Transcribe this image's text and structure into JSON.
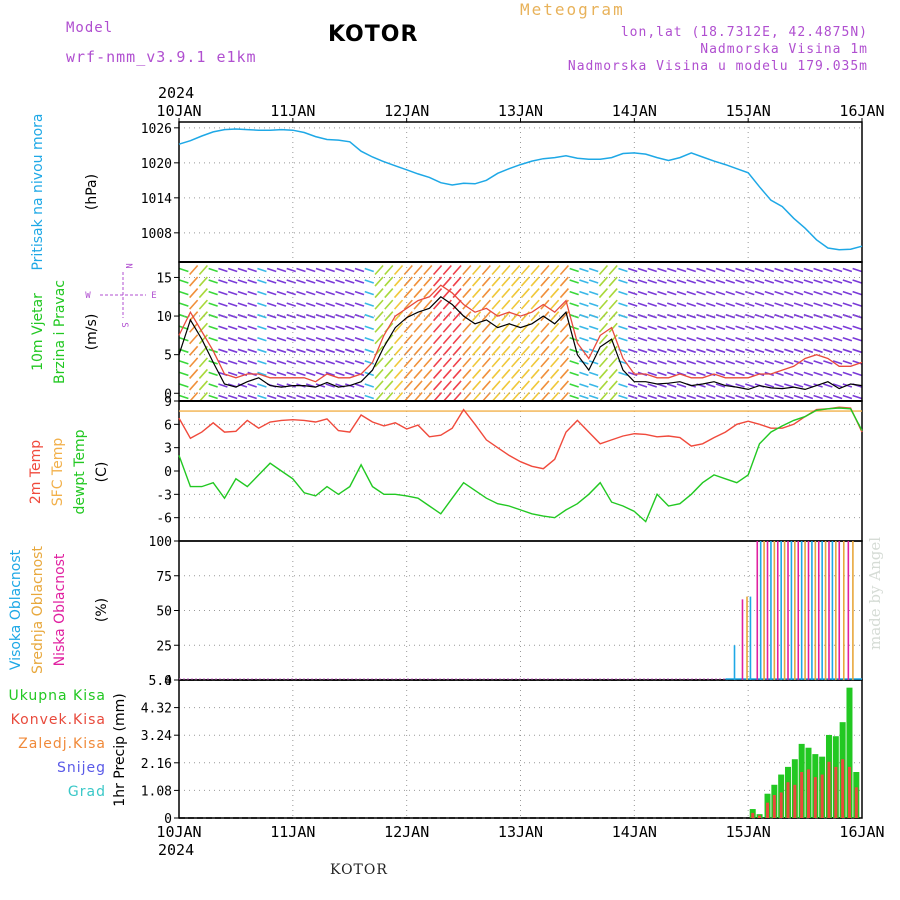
{
  "header": {
    "model_label": "Model",
    "model_version": "wrf-nmm_v3.9.1 e1km",
    "station": "KOTOR",
    "product": "Meteogram",
    "lonlat": "lon,lat (18.7312E, 42.4875N)",
    "altitude": "Nadmorska Visina 1m",
    "model_altitude": "Nadmorska Visina u modelu 179.035m"
  },
  "footer": {
    "station": "KOTOR"
  },
  "credit": "made by Angel",
  "time_axis": {
    "year": "2024",
    "ticks": [
      "10JAN",
      "11JAN",
      "12JAN",
      "13JAN",
      "14JAN",
      "15JAN",
      "16JAN"
    ]
  },
  "colors": {
    "pressure": "#1ea8e6",
    "wind_speed": "#000000",
    "wind_gust": "#e84a3c",
    "temp2m": "#f04a3c",
    "sfc_temp": "#f2b04a",
    "dewpoint": "#22c822",
    "cloud_high": "#1ea8e6",
    "cloud_mid": "#e8a83c",
    "cloud_low": "#e020a0",
    "precip_total": "#22c822",
    "precip_conv": "#e84a3c",
    "label_purple": "#b04fd0"
  },
  "chart_data": [
    {
      "type": "line",
      "panel": "pressure",
      "ylabel": [
        "Pritisak na nivou mora",
        "(hPa)"
      ],
      "ytick_labels": [
        "1026",
        "1020",
        "1014",
        "1008"
      ],
      "ylim": [
        1003,
        1027
      ],
      "x_days": [
        0,
        0.1,
        0.2,
        0.3,
        0.4,
        0.5,
        0.6,
        0.7,
        0.8,
        0.9,
        1.0,
        1.1,
        1.2,
        1.3,
        1.4,
        1.5,
        1.6,
        1.7,
        1.8,
        1.9,
        2.0,
        2.1,
        2.2,
        2.3,
        2.4,
        2.5,
        2.6,
        2.7,
        2.8,
        2.9,
        3.0,
        3.1,
        3.2,
        3.3,
        3.4,
        3.5,
        3.6,
        3.7,
        3.8,
        3.9,
        4.0,
        4.1,
        4.2,
        4.3,
        4.4,
        4.5,
        4.6,
        4.7,
        4.8,
        4.9,
        5.0,
        5.1,
        5.2,
        5.3,
        5.4,
        5.5,
        5.6,
        5.7,
        5.8,
        5.9,
        6.0
      ],
      "series": [
        {
          "values": [
            1023.2,
            1023.8,
            1024.6,
            1025.3,
            1025.7,
            1025.8,
            1025.7,
            1025.6,
            1025.6,
            1025.7,
            1025.6,
            1025.2,
            1024.5,
            1024.0,
            1023.9,
            1023.6,
            1022.0,
            1021.0,
            1020.2,
            1019.5,
            1018.8,
            1018.1,
            1017.5,
            1016.6,
            1016.2,
            1016.5,
            1016.4,
            1017.0,
            1018.2,
            1019.0,
            1019.7,
            1020.3,
            1020.7,
            1020.9,
            1021.2,
            1020.8,
            1020.6,
            1020.6,
            1020.9,
            1021.6,
            1021.7,
            1021.5,
            1020.9,
            1020.4,
            1020.9,
            1021.7,
            1021.0,
            1020.3,
            1019.7,
            1019.0,
            1018.3,
            1015.9,
            1013.6,
            1012.5,
            1010.5,
            1008.8,
            1006.8,
            1005.4,
            1005.1,
            1005.2,
            1005.7
          ]
        }
      ]
    },
    {
      "type": "line",
      "panel": "wind",
      "ylabel": [
        "10m Vjetar",
        "Brzina i Pravac",
        "(m/s)"
      ],
      "compass_labels": [
        "W",
        "E",
        "N",
        "S"
      ],
      "ytick_labels": [
        "15",
        "10",
        "5",
        "0"
      ],
      "ylim": [
        -1,
        17
      ],
      "x_days": [
        0,
        0.1,
        0.2,
        0.3,
        0.4,
        0.5,
        0.6,
        0.7,
        0.8,
        0.9,
        1.0,
        1.1,
        1.2,
        1.3,
        1.4,
        1.5,
        1.6,
        1.7,
        1.8,
        1.9,
        2.0,
        2.1,
        2.2,
        2.3,
        2.4,
        2.5,
        2.6,
        2.7,
        2.8,
        2.9,
        3.0,
        3.1,
        3.2,
        3.3,
        3.4,
        3.5,
        3.6,
        3.7,
        3.8,
        3.9,
        4.0,
        4.1,
        4.2,
        4.3,
        4.4,
        4.5,
        4.6,
        4.7,
        4.8,
        4.9,
        5.0,
        5.1,
        5.2,
        5.3,
        5.4,
        5.5,
        5.6,
        5.7,
        5.8,
        5.9,
        6.0
      ],
      "series": [
        {
          "name_ref": "speed",
          "values": [
            5.0,
            9.5,
            7.0,
            4.0,
            1.2,
            0.8,
            1.5,
            2.0,
            1.0,
            0.8,
            1.0,
            1.0,
            0.8,
            1.4,
            0.8,
            1.0,
            1.5,
            3.0,
            6.0,
            8.5,
            9.8,
            10.5,
            11.0,
            12.5,
            11.5,
            10.0,
            9.0,
            9.5,
            8.5,
            9.0,
            8.5,
            9.0,
            10.0,
            9.0,
            10.5,
            5.0,
            3.0,
            6.0,
            7.0,
            3.0,
            1.5,
            1.5,
            1.2,
            1.3,
            1.5,
            1.0,
            1.2,
            1.5,
            1.0,
            0.8,
            0.5,
            1.0,
            0.7,
            0.6,
            0.8,
            0.5,
            1.0,
            1.5,
            0.6,
            1.2,
            1.0
          ]
        },
        {
          "name_ref": "gust",
          "values": [
            7.5,
            10.5,
            8.0,
            5.5,
            2.5,
            2.0,
            2.5,
            2.5,
            2.0,
            2.0,
            2.0,
            2.0,
            1.5,
            2.5,
            2.0,
            2.0,
            2.5,
            4.0,
            7.5,
            10.0,
            11.0,
            12.0,
            12.5,
            14.0,
            13.0,
            11.5,
            10.5,
            11.0,
            10.0,
            10.5,
            10.0,
            10.5,
            11.5,
            10.5,
            12.0,
            6.5,
            4.5,
            7.5,
            8.5,
            4.5,
            2.5,
            2.5,
            2.0,
            2.0,
            2.5,
            2.0,
            2.0,
            2.5,
            2.0,
            2.0,
            2.0,
            2.5,
            2.5,
            3.0,
            3.5,
            4.5,
            5.0,
            4.5,
            3.5,
            3.5,
            4.0
          ]
        }
      ]
    },
    {
      "type": "line",
      "panel": "temperature",
      "ylabel": [
        "2m Temp",
        "SFC Temp",
        "dewpt Temp",
        "(C)"
      ],
      "ytick_labels": [
        "9",
        "6",
        "3",
        "0",
        "-3",
        "-6"
      ],
      "ylim": [
        -9,
        9
      ],
      "x_days": [
        0,
        0.1,
        0.2,
        0.3,
        0.4,
        0.5,
        0.6,
        0.7,
        0.8,
        0.9,
        1.0,
        1.1,
        1.2,
        1.3,
        1.4,
        1.5,
        1.6,
        1.7,
        1.8,
        1.9,
        2.0,
        2.1,
        2.2,
        2.3,
        2.4,
        2.5,
        2.6,
        2.7,
        2.8,
        2.9,
        3.0,
        3.1,
        3.2,
        3.3,
        3.4,
        3.5,
        3.6,
        3.7,
        3.8,
        3.9,
        4.0,
        4.1,
        4.2,
        4.3,
        4.4,
        4.5,
        4.6,
        4.7,
        4.8,
        4.9,
        5.0,
        5.1,
        5.2,
        5.3,
        5.4,
        5.5,
        5.6,
        5.7,
        5.8,
        5.9,
        6.0
      ],
      "series": [
        {
          "name_ref": "temp2m",
          "values": [
            6.8,
            4.2,
            5.0,
            6.2,
            5.0,
            5.1,
            6.5,
            5.5,
            6.3,
            6.5,
            6.6,
            6.5,
            6.3,
            6.7,
            5.2,
            5.0,
            7.2,
            6.3,
            5.8,
            6.2,
            5.4,
            5.9,
            4.4,
            4.6,
            5.5,
            7.9,
            6.0,
            4.0,
            3.0,
            2.0,
            1.2,
            0.6,
            0.3,
            1.5,
            5.0,
            6.5,
            5.0,
            3.5,
            4.0,
            4.5,
            4.8,
            4.7,
            4.4,
            4.5,
            4.3,
            3.2,
            3.5,
            4.3,
            5.0,
            6.0,
            6.4,
            6.0,
            5.5,
            5.5,
            6.0,
            7.0,
            7.9,
            8.0,
            8.2,
            8.1,
            5.0
          ]
        },
        {
          "name_ref": "sfc",
          "values": [
            7.7,
            7.7,
            7.7,
            7.7,
            7.7,
            7.7,
            7.7,
            7.7,
            7.7,
            7.7,
            7.7,
            7.7,
            7.7,
            7.7,
            7.7,
            7.7,
            7.7,
            7.7,
            7.7,
            7.7,
            7.7,
            7.7,
            7.7,
            7.7,
            7.7,
            7.7,
            7.7,
            7.7,
            7.7,
            7.7,
            7.7,
            7.7,
            7.7,
            7.7,
            7.7,
            7.7,
            7.7,
            7.7,
            7.7,
            7.7,
            7.7,
            7.7,
            7.7,
            7.7,
            7.7,
            7.7,
            7.7,
            7.7,
            7.7,
            7.7,
            7.7,
            7.7,
            7.7,
            7.7,
            7.7,
            7.7,
            7.7,
            7.7,
            7.7,
            7.7,
            7.7
          ]
        },
        {
          "name_ref": "dewpt",
          "values": [
            2.0,
            -2.0,
            -2.0,
            -1.5,
            -3.5,
            -1.0,
            -2.0,
            -0.5,
            1.0,
            0.0,
            -1.0,
            -2.8,
            -3.2,
            -2.0,
            -3.0,
            -2.0,
            0.8,
            -2.0,
            -3.0,
            -3.0,
            -3.2,
            -3.5,
            -4.5,
            -5.5,
            -3.5,
            -1.5,
            -2.5,
            -3.5,
            -4.2,
            -4.5,
            -5.0,
            -5.5,
            -5.8,
            -6.0,
            -5.0,
            -4.2,
            -3.0,
            -1.5,
            -4.0,
            -4.5,
            -5.2,
            -6.5,
            -3.0,
            -4.5,
            -4.2,
            -3.0,
            -1.5,
            -0.5,
            -1.0,
            -1.5,
            -0.5,
            3.5,
            5.0,
            5.8,
            6.5,
            7.0,
            7.8,
            8.0,
            8.1,
            8.0,
            5.2
          ]
        }
      ]
    },
    {
      "type": "bar",
      "panel": "clouds",
      "ylabel": [
        "Visoka Oblacnost",
        "Srednja Oblacnost",
        "Niska Oblacnost",
        "(%)"
      ],
      "ytick_labels": [
        "100",
        "75",
        "50",
        "25",
        "0"
      ],
      "ylim": [
        0,
        100
      ],
      "bars": [
        {
          "x": 4.88,
          "kind": "high",
          "value": 25
        },
        {
          "x": 4.95,
          "kind": "low",
          "value": 58
        },
        {
          "x": 4.99,
          "kind": "mid",
          "value": 60
        },
        {
          "x": 5.02,
          "kind": "high",
          "value": 60
        },
        {
          "x": 5.08,
          "kind": "low",
          "value": 100
        },
        {
          "x": 5.11,
          "kind": "high",
          "value": 100
        },
        {
          "x": 5.14,
          "kind": "mid",
          "value": 100
        },
        {
          "x": 5.17,
          "kind": "low",
          "value": 100
        },
        {
          "x": 5.2,
          "kind": "high",
          "value": 100
        },
        {
          "x": 5.23,
          "kind": "mid",
          "value": 100
        },
        {
          "x": 5.26,
          "kind": "low",
          "value": 100
        },
        {
          "x": 5.29,
          "kind": "high",
          "value": 100
        },
        {
          "x": 5.32,
          "kind": "mid",
          "value": 100
        },
        {
          "x": 5.35,
          "kind": "low",
          "value": 100
        },
        {
          "x": 5.38,
          "kind": "high",
          "value": 100
        },
        {
          "x": 5.41,
          "kind": "mid",
          "value": 100
        },
        {
          "x": 5.44,
          "kind": "low",
          "value": 100
        },
        {
          "x": 5.47,
          "kind": "high",
          "value": 100
        },
        {
          "x": 5.5,
          "kind": "mid",
          "value": 100
        },
        {
          "x": 5.53,
          "kind": "low",
          "value": 100
        },
        {
          "x": 5.56,
          "kind": "high",
          "value": 100
        },
        {
          "x": 5.59,
          "kind": "mid",
          "value": 100
        },
        {
          "x": 5.62,
          "kind": "low",
          "value": 100
        },
        {
          "x": 5.65,
          "kind": "high",
          "value": 100
        },
        {
          "x": 5.68,
          "kind": "mid",
          "value": 100
        },
        {
          "x": 5.71,
          "kind": "low",
          "value": 100
        },
        {
          "x": 5.74,
          "kind": "high",
          "value": 100
        },
        {
          "x": 5.77,
          "kind": "mid",
          "value": 100
        },
        {
          "x": 5.8,
          "kind": "low",
          "value": 100
        },
        {
          "x": 5.84,
          "kind": "mid",
          "value": 100
        },
        {
          "x": 5.88,
          "kind": "low",
          "value": 100
        },
        {
          "x": 5.92,
          "kind": "mid",
          "value": 100
        }
      ]
    },
    {
      "type": "bar",
      "panel": "precipitation",
      "ylabel": [
        "1hr Precip",
        "(mm)"
      ],
      "legend_labels": [
        "Ukupna Kisa",
        "Konvek.Kisa",
        "Zaledj.Kisa",
        "Snijeg",
        "Grad"
      ],
      "ytick_labels": [
        "5.4",
        "4.32",
        "3.24",
        "2.16",
        "1.08",
        "0"
      ],
      "ylim": [
        0,
        5.4
      ],
      "bars": [
        {
          "x": 5.04,
          "total": 0.35,
          "conv": 0.2
        },
        {
          "x": 5.1,
          "total": 0.15,
          "conv": 0.1
        },
        {
          "x": 5.17,
          "total": 0.95,
          "conv": 0.6
        },
        {
          "x": 5.23,
          "total": 1.3,
          "conv": 0.9
        },
        {
          "x": 5.29,
          "total": 1.7,
          "conv": 1.0
        },
        {
          "x": 5.35,
          "total": 2.0,
          "conv": 1.4
        },
        {
          "x": 5.41,
          "total": 2.3,
          "conv": 1.3
        },
        {
          "x": 5.47,
          "total": 2.9,
          "conv": 1.8
        },
        {
          "x": 5.53,
          "total": 2.75,
          "conv": 1.9
        },
        {
          "x": 5.59,
          "total": 2.5,
          "conv": 1.6
        },
        {
          "x": 5.65,
          "total": 2.4,
          "conv": 1.7
        },
        {
          "x": 5.71,
          "total": 3.25,
          "conv": 2.2
        },
        {
          "x": 5.77,
          "total": 3.2,
          "conv": 2.0
        },
        {
          "x": 5.83,
          "total": 3.75,
          "conv": 2.3
        },
        {
          "x": 5.89,
          "total": 5.1,
          "conv": 2.0
        },
        {
          "x": 5.95,
          "total": 1.8,
          "conv": 1.2
        }
      ]
    }
  ]
}
